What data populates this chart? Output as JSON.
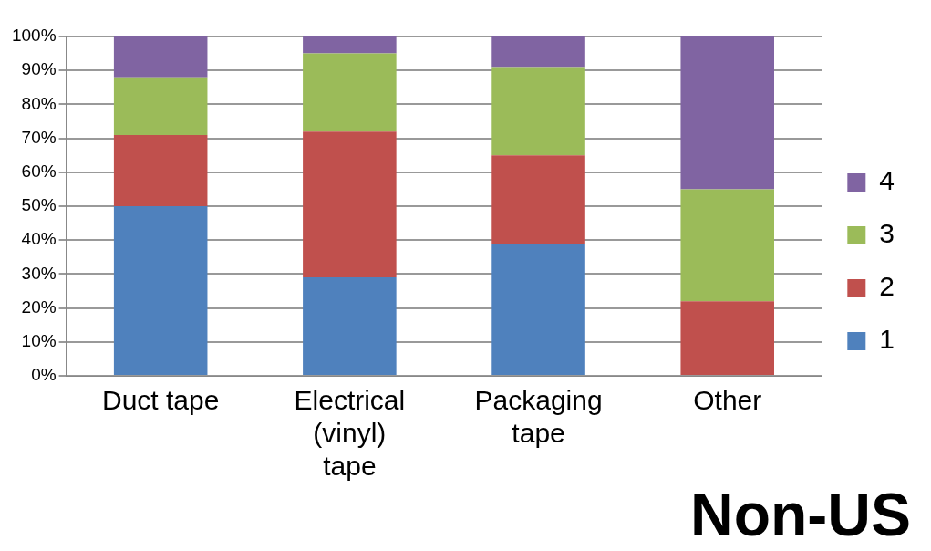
{
  "chart_data": {
    "type": "bar",
    "title": "Non-US",
    "stacked": true,
    "categories": [
      "Duct tape",
      "Electrical (vinyl) tape",
      "Packaging tape",
      "Other"
    ],
    "series": [
      {
        "name": "1",
        "color": "#4f81bd",
        "values": [
          50,
          29,
          39,
          0
        ]
      },
      {
        "name": "2",
        "color": "#c0504d",
        "values": [
          21,
          43,
          26,
          22
        ]
      },
      {
        "name": "3",
        "color": "#9bbb59",
        "values": [
          17,
          23,
          26,
          33
        ]
      },
      {
        "name": "4",
        "color": "#8064a2",
        "values": [
          12,
          5,
          9,
          45
        ]
      }
    ],
    "ylim": [
      0,
      100
    ],
    "yticks": [
      {
        "value": 0,
        "label": "0%"
      },
      {
        "value": 10,
        "label": "10%"
      },
      {
        "value": 20,
        "label": "20%"
      },
      {
        "value": 30,
        "label": "30%"
      },
      {
        "value": 40,
        "label": "40%"
      },
      {
        "value": 50,
        "label": "50%"
      },
      {
        "value": 60,
        "label": "60%"
      },
      {
        "value": 70,
        "label": "70%"
      },
      {
        "value": 80,
        "label": "80%"
      },
      {
        "value": 90,
        "label": "90%"
      },
      {
        "value": 100,
        "label": "100%"
      }
    ],
    "grid": "y",
    "legend": "right"
  }
}
